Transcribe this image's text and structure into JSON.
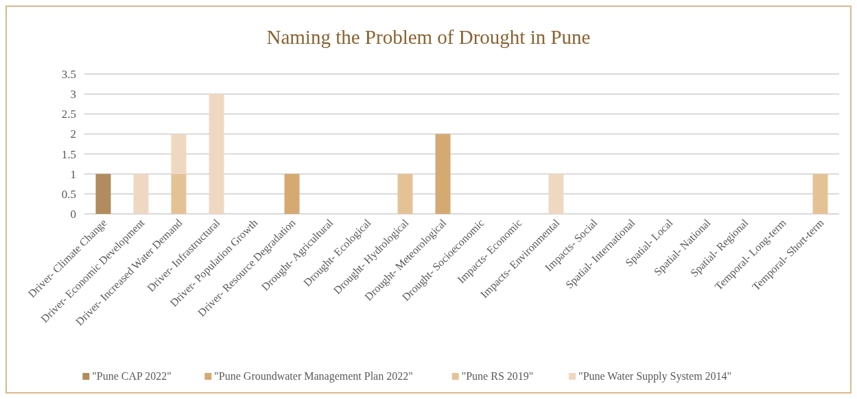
{
  "chart_data": {
    "type": "bar",
    "stacked": true,
    "title": "Naming the Problem of Drought in Pune",
    "categories": [
      "Driver- Climate Change",
      "Driver- Economic Development",
      "Driver- Increased Water Demand",
      "Driver- Infrastructural",
      "Driver- Population Growth",
      "Driver- Resource Degradation",
      "Drought- Agricultural",
      "Drought- Ecological",
      "Drought- Hydrological",
      "Drought- Meteorological",
      "Drought- Socioeconomic",
      "Impacts- Economic",
      "Impacts- Environmental",
      "Impacts- Social",
      "Spatial- International",
      "Spatial- Local",
      "Spatial- National",
      "Spatial- Regional",
      "Temporal- Long-term",
      "Temporal- Short-term"
    ],
    "series": [
      {
        "name": "\"Pune CAP 2022\"",
        "color": "#b08c5e",
        "values": [
          1,
          null,
          null,
          null,
          null,
          null,
          null,
          null,
          null,
          null,
          null,
          null,
          null,
          null,
          null,
          null,
          null,
          null,
          null,
          null
        ]
      },
      {
        "name": "\"Pune Groundwater Management Plan 2022\"",
        "color": "#d4a972",
        "values": [
          null,
          null,
          null,
          null,
          null,
          1,
          null,
          null,
          null,
          2,
          null,
          null,
          null,
          null,
          null,
          null,
          null,
          null,
          null,
          null
        ]
      },
      {
        "name": "\"Pune RS 2019\"",
        "color": "#e5c296",
        "values": [
          null,
          null,
          1,
          null,
          null,
          null,
          null,
          null,
          1,
          null,
          null,
          null,
          null,
          null,
          null,
          null,
          null,
          null,
          null,
          1
        ]
      },
      {
        "name": "\"Pune Water Supply System 2014\"",
        "color": "#efd8c2",
        "values": [
          null,
          1,
          1,
          3,
          null,
          null,
          null,
          null,
          null,
          null,
          null,
          null,
          1,
          null,
          null,
          null,
          null,
          null,
          null,
          null
        ]
      }
    ],
    "ylim": [
      0,
      3.5
    ],
    "yticks": [
      0,
      0.5,
      1,
      1.5,
      2,
      2.5,
      3,
      3.5
    ],
    "grid": "y",
    "legend": "bottom"
  }
}
